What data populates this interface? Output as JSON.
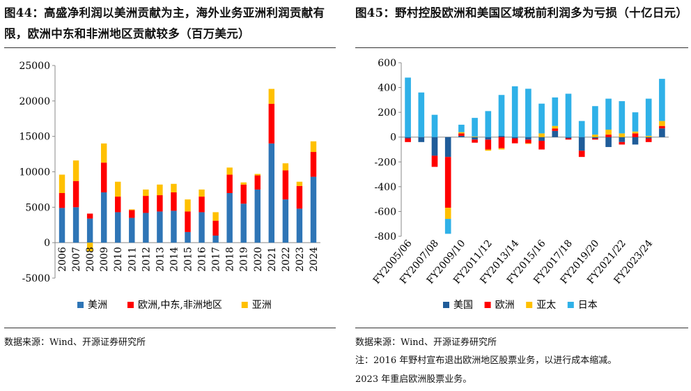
{
  "left": {
    "title": "图44：高盛净利润以美洲贡献为主，海外业务亚洲利润贡献有限，欧洲中东和非洲地区贡献较多（百万美元）",
    "source": "数据来源：Wind、开源证券研究所"
  },
  "right": {
    "title": "图45：野村控股欧洲和美国区域税前利润多为亏损（十亿日元）",
    "source": "数据来源：Wind、开源证券研究所",
    "note_line1": "注：2016 年野村宣布退出欧洲地区股票业务，以进行成本缩减。",
    "note_line2": "2023 年重启欧洲股票业务。"
  },
  "chart_data": [
    {
      "type": "bar",
      "stacked": true,
      "title": "高盛净利润以美洲贡献为主，海外业务亚洲利润贡献有限，欧洲中东和非洲地区贡献较多（百万美元）",
      "categories": [
        "2006",
        "2007",
        "2008",
        "2009",
        "2010",
        "2011",
        "2012",
        "2013",
        "2014",
        "2015",
        "2016",
        "2017",
        "2018",
        "2019",
        "2020",
        "2021",
        "2022",
        "2023",
        "2024"
      ],
      "series": [
        {
          "name": "美洲",
          "color": "#2E75B6",
          "values": [
            4900,
            5000,
            3400,
            7100,
            4300,
            3500,
            4200,
            4400,
            4500,
            1500,
            4300,
            1000,
            7000,
            5500,
            7500,
            14000,
            6100,
            4800,
            9300
          ]
        },
        {
          "name": "欧洲,中东,非洲地区",
          "color": "#FF0000",
          "values": [
            2100,
            3700,
            700,
            4200,
            2200,
            1100,
            2400,
            2300,
            2600,
            2900,
            2200,
            2100,
            2600,
            2700,
            2000,
            5600,
            4100,
            3200,
            3500
          ]
        },
        {
          "name": "亚洲",
          "color": "#FFC000",
          "values": [
            2600,
            2900,
            -1200,
            2700,
            2100,
            100,
            900,
            1500,
            1200,
            1700,
            1000,
            1200,
            1000,
            300,
            200,
            2100,
            1000,
            600,
            1500
          ]
        }
      ],
      "ylim": [
        -5000,
        25000
      ],
      "yticks": [
        -5000,
        0,
        5000,
        10000,
        15000,
        20000,
        25000
      ],
      "legend_position": "bottom"
    },
    {
      "type": "bar",
      "stacked": true,
      "title": "野村控股欧洲和美国区域税前利润多为亏损（十亿日元）",
      "categories": [
        "FY2005/06",
        "FY2006/07",
        "FY2007/08",
        "FY2008/09",
        "FY2009/10",
        "FY2010/11",
        "FY2011/12",
        "FY2012/13",
        "FY2013/14",
        "FY2014/15",
        "FY2015/16",
        "FY2016/17",
        "FY2017/18",
        "FY2018/19",
        "FY2019/20",
        "FY2020/21",
        "FY2021/22",
        "FY2022/23",
        "FY2023/24",
        "FY2024/25"
      ],
      "xticklabels_shown": [
        "FY2005/06",
        "FY2007/08",
        "FY2009/10",
        "FY2011/12",
        "FY2013/14",
        "FY2015/16",
        "FY2017/18",
        "FY2019/20",
        "FY2021/22",
        "FY2023/24"
      ],
      "series": [
        {
          "name": "美国",
          "color": "#1F5C99",
          "values": [
            -10,
            -40,
            -150,
            -160,
            10,
            -20,
            -20,
            10,
            -10,
            -20,
            -30,
            50,
            -10,
            -110,
            -10,
            -80,
            -40,
            -60,
            -10,
            70
          ]
        },
        {
          "name": "欧洲",
          "color": "#FF0000",
          "values": [
            -30,
            0,
            -90,
            -410,
            20,
            -25,
            -80,
            -90,
            -40,
            -30,
            -70,
            20,
            -10,
            -50,
            -10,
            20,
            -20,
            30,
            -30,
            20
          ]
        },
        {
          "name": "亚太",
          "color": "#FFC000",
          "values": [
            0,
            0,
            0,
            -90,
            10,
            5,
            -10,
            -10,
            0,
            -5,
            30,
            20,
            0,
            0,
            20,
            40,
            30,
            15,
            10,
            40
          ]
        },
        {
          "name": "日本",
          "color": "#2FB1E8",
          "values": [
            480,
            360,
            180,
            -120,
            60,
            150,
            210,
            330,
            410,
            390,
            240,
            230,
            350,
            130,
            230,
            250,
            260,
            155,
            300,
            340
          ]
        }
      ],
      "ylim": [
        -800,
        600
      ],
      "yticks": [
        -800,
        -600,
        -400,
        -200,
        0,
        200,
        400,
        600
      ],
      "legend_position": "bottom"
    }
  ]
}
